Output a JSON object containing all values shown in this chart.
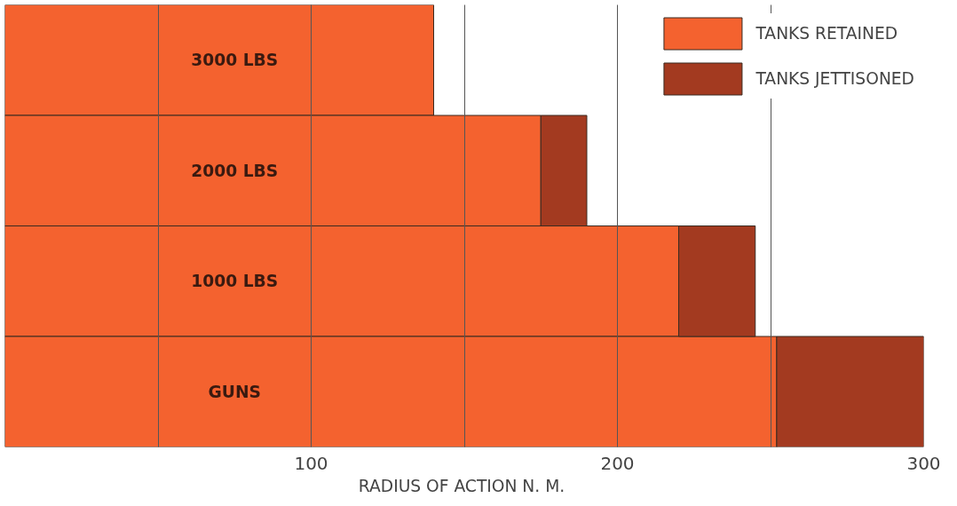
{
  "chart_data": {
    "type": "bar",
    "orientation": "horizontal",
    "stacked": true,
    "categories": [
      "3000 LBS",
      "2000 LBS",
      "1000 LBS",
      "GUNS"
    ],
    "series": [
      {
        "name": "TANKS RETAINED",
        "color": "#f4622f",
        "values": [
          140,
          175,
          220,
          252
        ]
      },
      {
        "name": "TANKS JETTISONED",
        "color": "#a33a20",
        "values": [
          null,
          15,
          25,
          48
        ]
      }
    ],
    "xlim": [
      0,
      300
    ],
    "xticks": [
      {
        "value": 50,
        "label": null
      },
      100,
      {
        "value": 150,
        "label": null
      },
      200,
      {
        "value": 250,
        "label": null
      },
      300
    ],
    "xlabel": "RADIUS OF ACTION  N. M.",
    "grid": "x",
    "legend": "top right",
    "tick_labels": "x"
  }
}
